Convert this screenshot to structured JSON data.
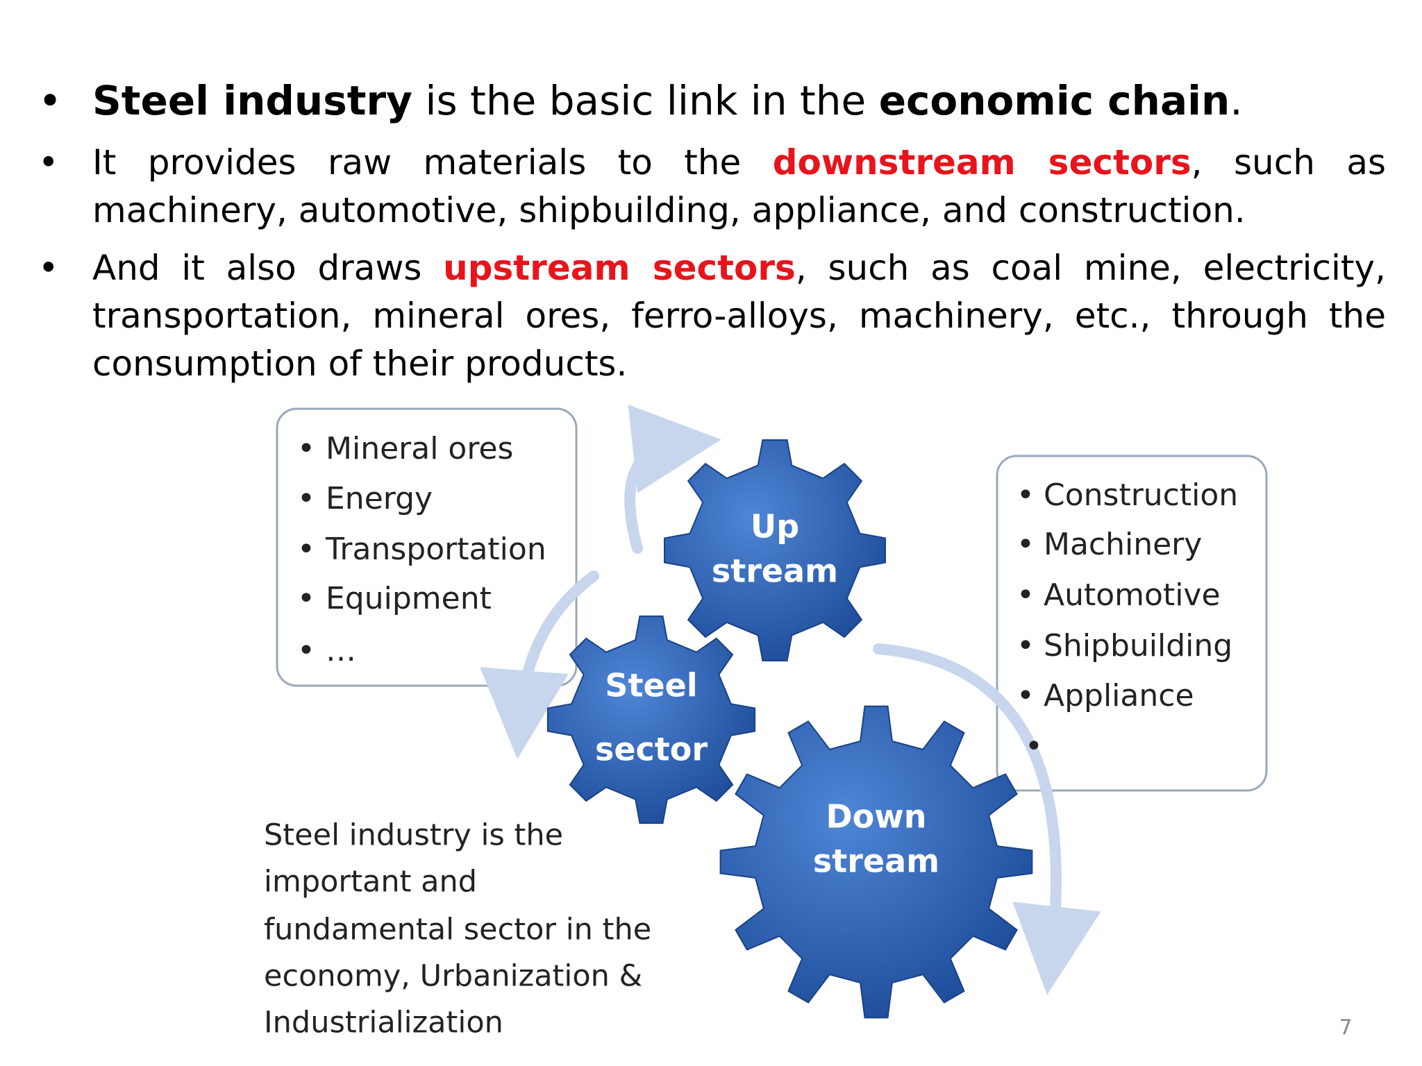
{
  "bullets": [
    {
      "runs": [
        {
          "text": "Steel industry",
          "style": "bold"
        },
        {
          "text": " is the basic link in the "
        },
        {
          "text": "economic chain",
          "style": "bold"
        },
        {
          "text": "."
        }
      ]
    },
    {
      "runs": [
        {
          "text": "It provides raw materials to the "
        },
        {
          "text": "downstream sectors",
          "style": "red"
        },
        {
          "text": ", such as machinery, automotive, shipbuilding, appliance, and construction."
        }
      ]
    },
    {
      "runs": [
        {
          "text": "And it also draws "
        },
        {
          "text": "upstream sectors",
          "style": "red"
        },
        {
          "text": ", such as coal mine, electricity, transportation, mineral ores, ferro-alloys, machinery, etc., through the consumption of their products."
        }
      ]
    }
  ],
  "diagram": {
    "upstream_items": [
      "Mineral ores",
      "Energy",
      "Transportation",
      "Equipment",
      "…"
    ],
    "downstream_items": [
      "Construction",
      "Machinery",
      "Automotive",
      "Shipbuilding",
      "Appliance"
    ],
    "gears": [
      {
        "lines": [
          "Up",
          "stream"
        ]
      },
      {
        "lines": [
          "Steel",
          "sector"
        ]
      },
      {
        "lines": [
          "Down",
          "stream"
        ]
      }
    ],
    "caption": [
      "Steel industry is the",
      "important and",
      "fundamental  sector in the",
      "economy, Urbanization &",
      "Industrialization"
    ]
  },
  "page_number": "7"
}
